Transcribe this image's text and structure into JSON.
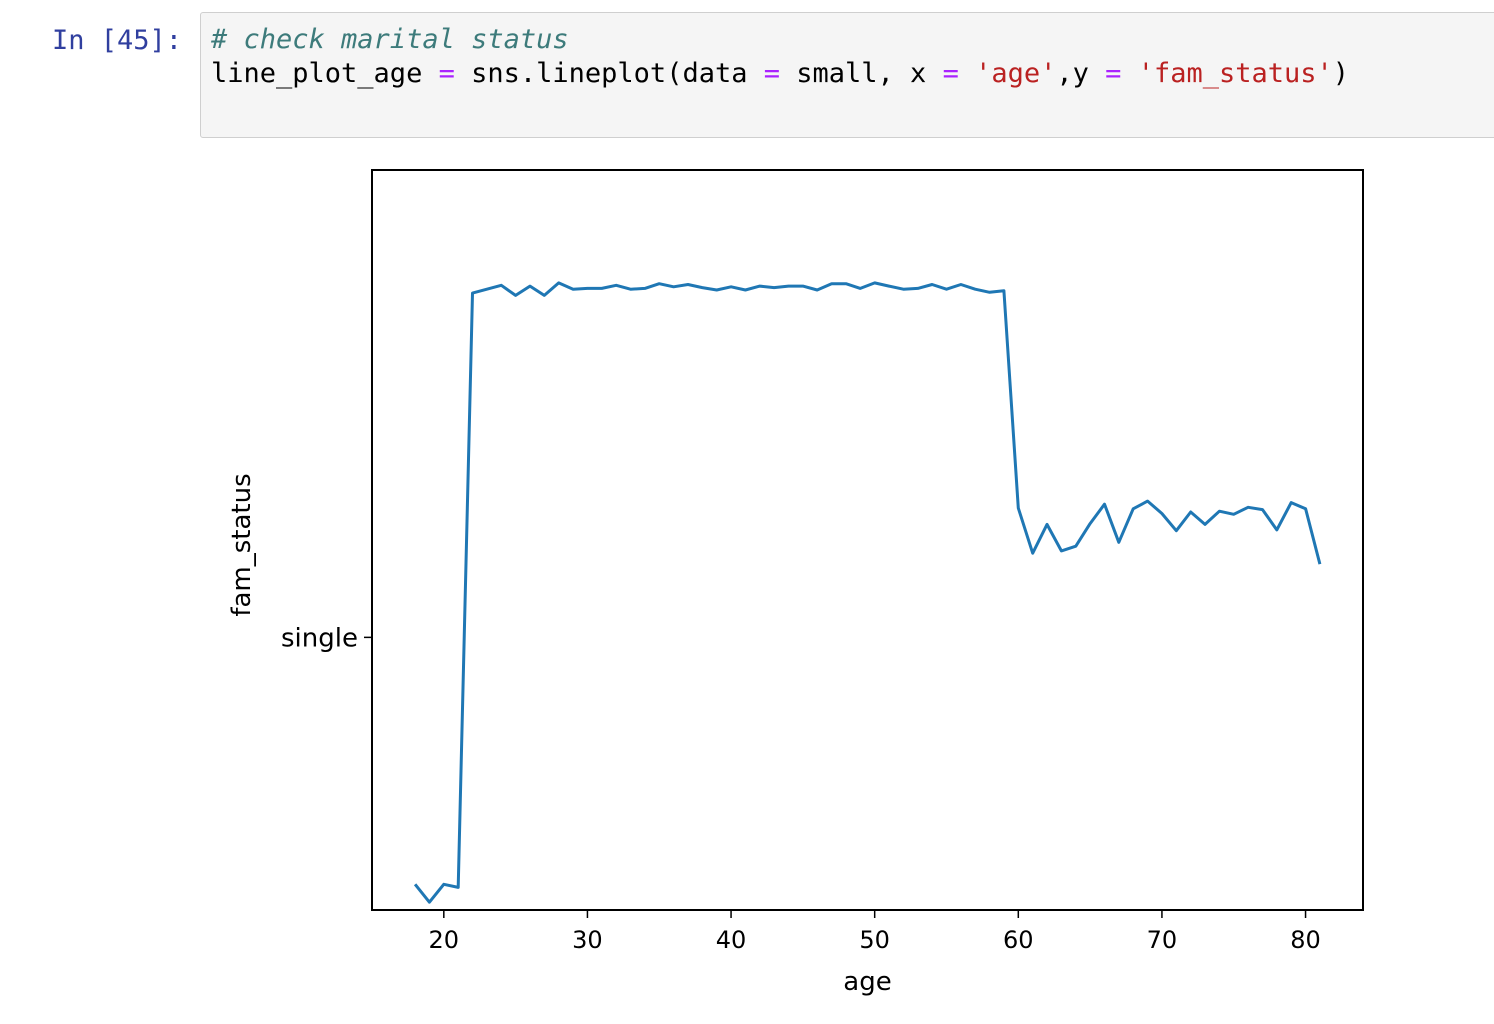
{
  "cell": {
    "prompt": "In [45]:",
    "code": {
      "comment": "# check marital status",
      "var": "line_plot_age",
      "eq1": "=",
      "call_prefix": "sns.lineplot(data",
      "eq2": "=",
      "small_x": "small, x",
      "eq3": "=",
      "str_age": "'age'",
      "comma_y": ",y",
      "eq4": "=",
      "str_fam": "'fam_status'",
      "close": ")"
    }
  },
  "chart_data": {
    "type": "line",
    "xlabel": "age",
    "ylabel": "fam_status",
    "xlim": [
      15,
      84
    ],
    "ylim": [
      -0.035,
      0.06
    ],
    "x_ticks": [
      20,
      30,
      40,
      50,
      60,
      70,
      80
    ],
    "y_ticks": [
      {
        "label": "single",
        "value": 0
      }
    ],
    "grid": false,
    "series": [
      {
        "color": "#1f77b4",
        "x": [
          18,
          19,
          20,
          21,
          22,
          23,
          24,
          25,
          26,
          27,
          28,
          29,
          30,
          31,
          32,
          33,
          34,
          35,
          36,
          37,
          38,
          39,
          40,
          41,
          42,
          43,
          44,
          45,
          46,
          47,
          48,
          49,
          50,
          51,
          52,
          53,
          54,
          55,
          56,
          57,
          58,
          59,
          60,
          61,
          62,
          63,
          64,
          65,
          66,
          67,
          68,
          69,
          70,
          71,
          72,
          73,
          74,
          75,
          76,
          77,
          78,
          79,
          80,
          81
        ],
        "y": [
          -0.0317,
          -0.034,
          -0.0317,
          -0.0321,
          0.0442,
          0.0447,
          0.0452,
          0.0439,
          0.0451,
          0.0439,
          0.0455,
          0.0447,
          0.0448,
          0.0448,
          0.0452,
          0.0447,
          0.0448,
          0.0454,
          0.045,
          0.0453,
          0.0449,
          0.0446,
          0.045,
          0.0446,
          0.0451,
          0.0449,
          0.0451,
          0.0451,
          0.0446,
          0.0454,
          0.0454,
          0.0448,
          0.0455,
          0.0451,
          0.0447,
          0.0448,
          0.0453,
          0.0447,
          0.0453,
          0.0447,
          0.0443,
          0.0445,
          0.0166,
          0.0108,
          0.0145,
          0.0111,
          0.0117,
          0.0146,
          0.0171,
          0.0122,
          0.0165,
          0.0175,
          0.0159,
          0.0137,
          0.0161,
          0.0145,
          0.0162,
          0.0158,
          0.0167,
          0.0164,
          0.0138,
          0.0173,
          0.0165,
          0.0094
        ]
      }
    ]
  }
}
